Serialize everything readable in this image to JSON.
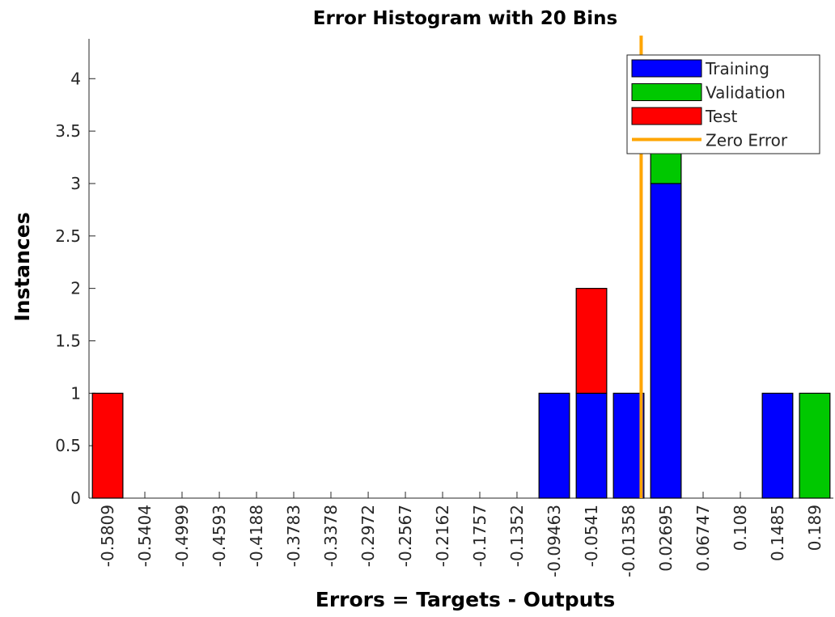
{
  "chart_data": {
    "type": "stacked_histogram",
    "title": "Error Histogram with 20 Bins",
    "xlabel": "Errors = Targets - Outputs",
    "ylabel": "Instances",
    "x": [
      -0.5809,
      -0.5404,
      -0.4999,
      -0.4593,
      -0.4188,
      -0.3783,
      -0.3378,
      -0.2972,
      -0.2567,
      -0.2162,
      -0.1757,
      -0.1352,
      -0.09463,
      -0.0541,
      -0.01358,
      0.02695,
      0.06747,
      0.108,
      0.1485,
      0.189
    ],
    "xticks": [
      -0.5809,
      -0.5404,
      -0.4999,
      -0.4593,
      -0.4188,
      -0.3783,
      -0.3378,
      -0.2972,
      -0.2567,
      -0.2162,
      -0.1757,
      -0.1352,
      -0.09463,
      -0.0541,
      -0.01358,
      0.02695,
      0.06747,
      0.108,
      0.1485,
      0.189
    ],
    "xlim": [
      -0.6012,
      0.2093
    ],
    "ylim": [
      0,
      4.38
    ],
    "yticks": [
      0,
      0.5,
      1,
      1.5,
      2,
      2.5,
      3,
      3.5,
      4
    ],
    "series": [
      {
        "name": "Training",
        "color": "#0000ff",
        "values": [
          0,
          0,
          0,
          0,
          0,
          0,
          0,
          0,
          0,
          0,
          0,
          0,
          1,
          1,
          1,
          3,
          0,
          0,
          1,
          0
        ]
      },
      {
        "name": "Validation",
        "color": "#00c800",
        "values": [
          0,
          0,
          0,
          0,
          0,
          0,
          0,
          0,
          0,
          0,
          0,
          0,
          0,
          0,
          0,
          1,
          0,
          0,
          0,
          1
        ]
      },
      {
        "name": "Test",
        "color": "#ff0000",
        "values": [
          1,
          0,
          0,
          0,
          0,
          0,
          0,
          0,
          0,
          0,
          0,
          0,
          0,
          1,
          0,
          0,
          0,
          0,
          0,
          0
        ]
      }
    ],
    "zero_error": {
      "name": "Zero Error",
      "value": 0,
      "color": "#ffa500"
    },
    "legend": "upper right"
  }
}
